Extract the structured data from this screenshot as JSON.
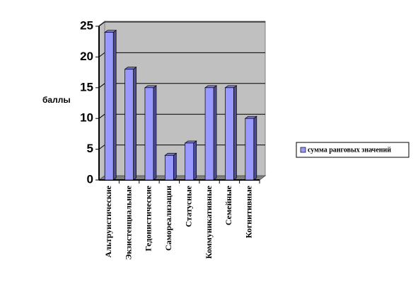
{
  "chart_data": {
    "type": "bar",
    "y_label": "баллы",
    "categories": [
      "Альтруистические",
      "Экзистенциальные",
      "Гедонистические",
      "Самореализации",
      "Статусные",
      "Коммуникативные",
      "Семейные",
      "Когнитивные"
    ],
    "series": [
      {
        "name": "сумма ранговых значений",
        "color": "#9999ff",
        "values": [
          24,
          18,
          15,
          4,
          6,
          15,
          15,
          10
        ]
      }
    ],
    "ylim": [
      0,
      25
    ],
    "yticks": [
      0,
      5,
      10,
      15,
      20,
      25
    ],
    "grid": true,
    "legend": "right"
  }
}
